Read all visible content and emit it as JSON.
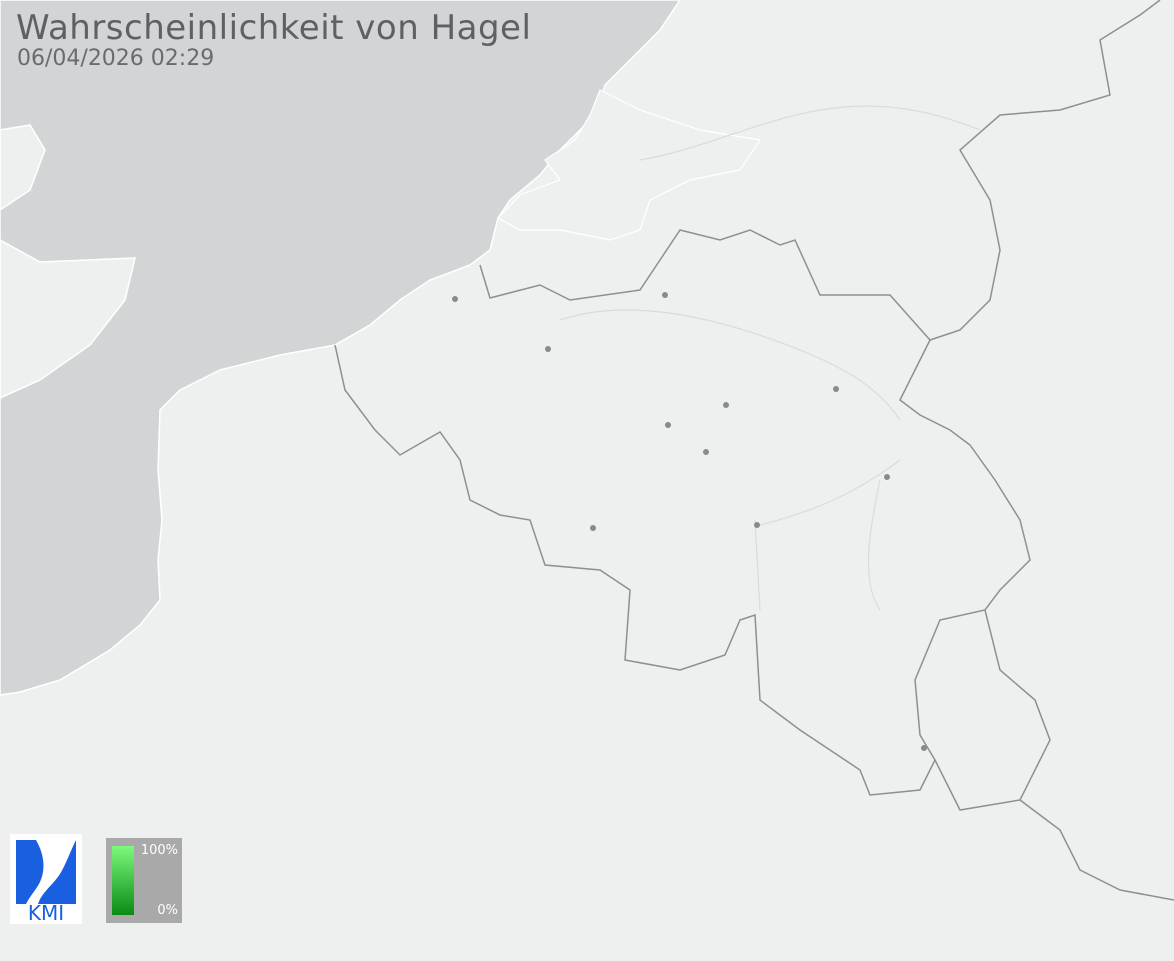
{
  "header": {
    "title": "Wahrscheinlichkeit von Hagel",
    "timestamp": "06/04/2026 02:29"
  },
  "logo": {
    "text": "KMI",
    "color": "#1a5fe0"
  },
  "legend": {
    "max_label": "100%",
    "min_label": "0%",
    "color_high": "#7dfa7d",
    "color_low": "#0a8a14"
  },
  "colors": {
    "land": "#eef0ef",
    "sea": "#d2d5d6",
    "border": "#8e8f90",
    "city": "#8a8a8a"
  }
}
